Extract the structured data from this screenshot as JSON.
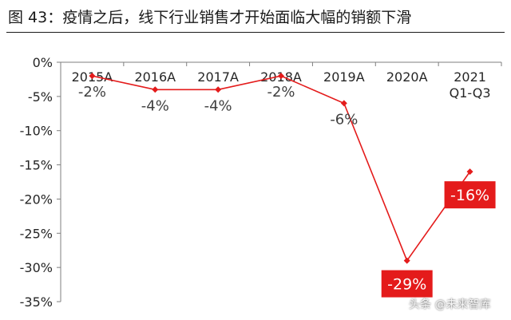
{
  "figure": {
    "title": "图 43：疫情之后，线下行业销售才开始面临大幅的销额下滑"
  },
  "watermark": "头条 @未来智库",
  "colors": {
    "line": "#e41b1b",
    "highlight_box": "#e41b1b",
    "highlight_text": "#ffffff",
    "label_text": "#404040",
    "axis": "#7f7f7f"
  },
  "chart_data": {
    "type": "line",
    "title": "",
    "xlabel": "",
    "ylabel": "",
    "categories": [
      "2015A",
      "2016A",
      "2017A",
      "2018A",
      "2019A",
      "2020A",
      "2021\nQ1-Q3"
    ],
    "series": [
      {
        "name": "",
        "values": [
          -2,
          -4,
          -4,
          -2,
          -6,
          -29,
          -16
        ]
      }
    ],
    "data_labels": [
      "-2%",
      "-4%",
      "-4%",
      "-2%",
      "-6%",
      "-29%",
      "-16%"
    ],
    "highlighted_labels": [
      "-29%",
      "-16%"
    ],
    "ylim": [
      -35,
      0
    ],
    "yticks": [
      0,
      -5,
      -10,
      -15,
      -20,
      -25,
      -30,
      -35
    ],
    "ytick_labels": [
      "0%",
      "-5%",
      "-10%",
      "-15%",
      "-20%",
      "-25%",
      "-30%",
      "-35%"
    ],
    "category_axis_position": "top",
    "grid": false,
    "legend": "none"
  }
}
